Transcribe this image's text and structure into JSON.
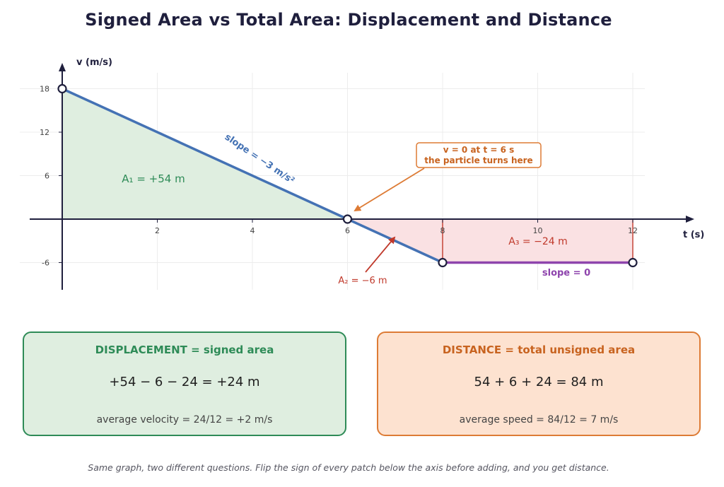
{
  "title": "Signed Area vs Total Area:  Displacement and Distance",
  "colors": {
    "positive_fill": "#dfeee0",
    "negative_fill": "#fae1e3",
    "velocity_line": "#4472b4",
    "flat_line": "#8e44ad",
    "green": "#2e8b57",
    "red": "#c0392b",
    "orange": "#dd7b35",
    "axis": "#1f1f3d"
  },
  "chart_data": {
    "type": "line",
    "title": "Signed Area vs Total Area:  Displacement and Distance",
    "xlabel": "t  (s)",
    "ylabel": "v  (m/s)",
    "xlim": [
      0,
      12
    ],
    "ylim": [
      -6,
      18
    ],
    "x_ticks": [
      2,
      4,
      6,
      8,
      10,
      12
    ],
    "y_ticks": [
      18,
      12,
      6,
      -6
    ],
    "x_tick_labels": [
      "2",
      "4",
      "6",
      "8",
      "10",
      "12"
    ],
    "y_tick_labels": [
      "18",
      "12",
      "6",
      "-6"
    ],
    "grid": true,
    "series": [
      {
        "x": [
          0,
          6,
          8,
          12
        ],
        "y": [
          18,
          0,
          -6,
          -6
        ]
      }
    ],
    "marked_points": [
      {
        "x": 0,
        "y": 18
      },
      {
        "x": 6,
        "y": 0
      },
      {
        "x": 8,
        "y": -6
      },
      {
        "x": 12,
        "y": -6
      }
    ],
    "regions": [
      {
        "label": "A₁ = +54 m",
        "x_range": [
          0,
          6
        ],
        "area": 54,
        "sign": "positive"
      },
      {
        "label": "A₂ = −6 m",
        "x_range": [
          6,
          8
        ],
        "area": -6,
        "sign": "negative"
      },
      {
        "label": "A₃ = −24 m",
        "x_range": [
          8,
          12
        ],
        "area": -24,
        "sign": "negative"
      }
    ],
    "annotations": {
      "slope1": "slope  = −3 m/s²",
      "slope2": "slope  = 0",
      "turn_line1": "v = 0 at t = 6 s",
      "turn_line2": "the particle turns here"
    }
  },
  "displacement": {
    "title": "DISPLACEMENT  =  signed area",
    "equation": "+54 − 6 − 24 = +24 m",
    "note": "average velocity  = 24/12 = +2 m/s"
  },
  "distance": {
    "title": "DISTANCE  =  total unsigned area",
    "equation": "54 + 6 + 24 = 84 m",
    "note": "average speed  = 84/12 = 7 m/s"
  },
  "footnote": "Same graph, two different questions. Flip the sign of every patch below the axis before adding, and you get distance."
}
